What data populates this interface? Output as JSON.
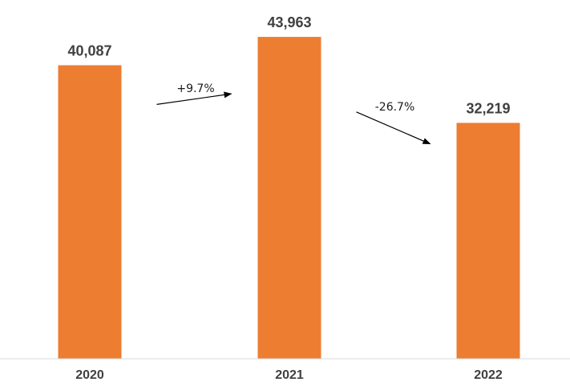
{
  "chart_data": {
    "type": "bar",
    "categories": [
      "2020",
      "2021",
      "2022"
    ],
    "values": [
      40087,
      43963,
      32219
    ],
    "value_labels": [
      "40,087",
      "43,963",
      "32,219"
    ],
    "ylim": [
      0,
      49000
    ],
    "grid": false,
    "colors": {
      "bar": "#ED7D31",
      "text": "#404040"
    },
    "annotations": [
      {
        "from": "2020",
        "to": "2021",
        "text": "+9.7%"
      },
      {
        "from": "2021",
        "to": "2022",
        "text": "-26.7%"
      }
    ]
  }
}
